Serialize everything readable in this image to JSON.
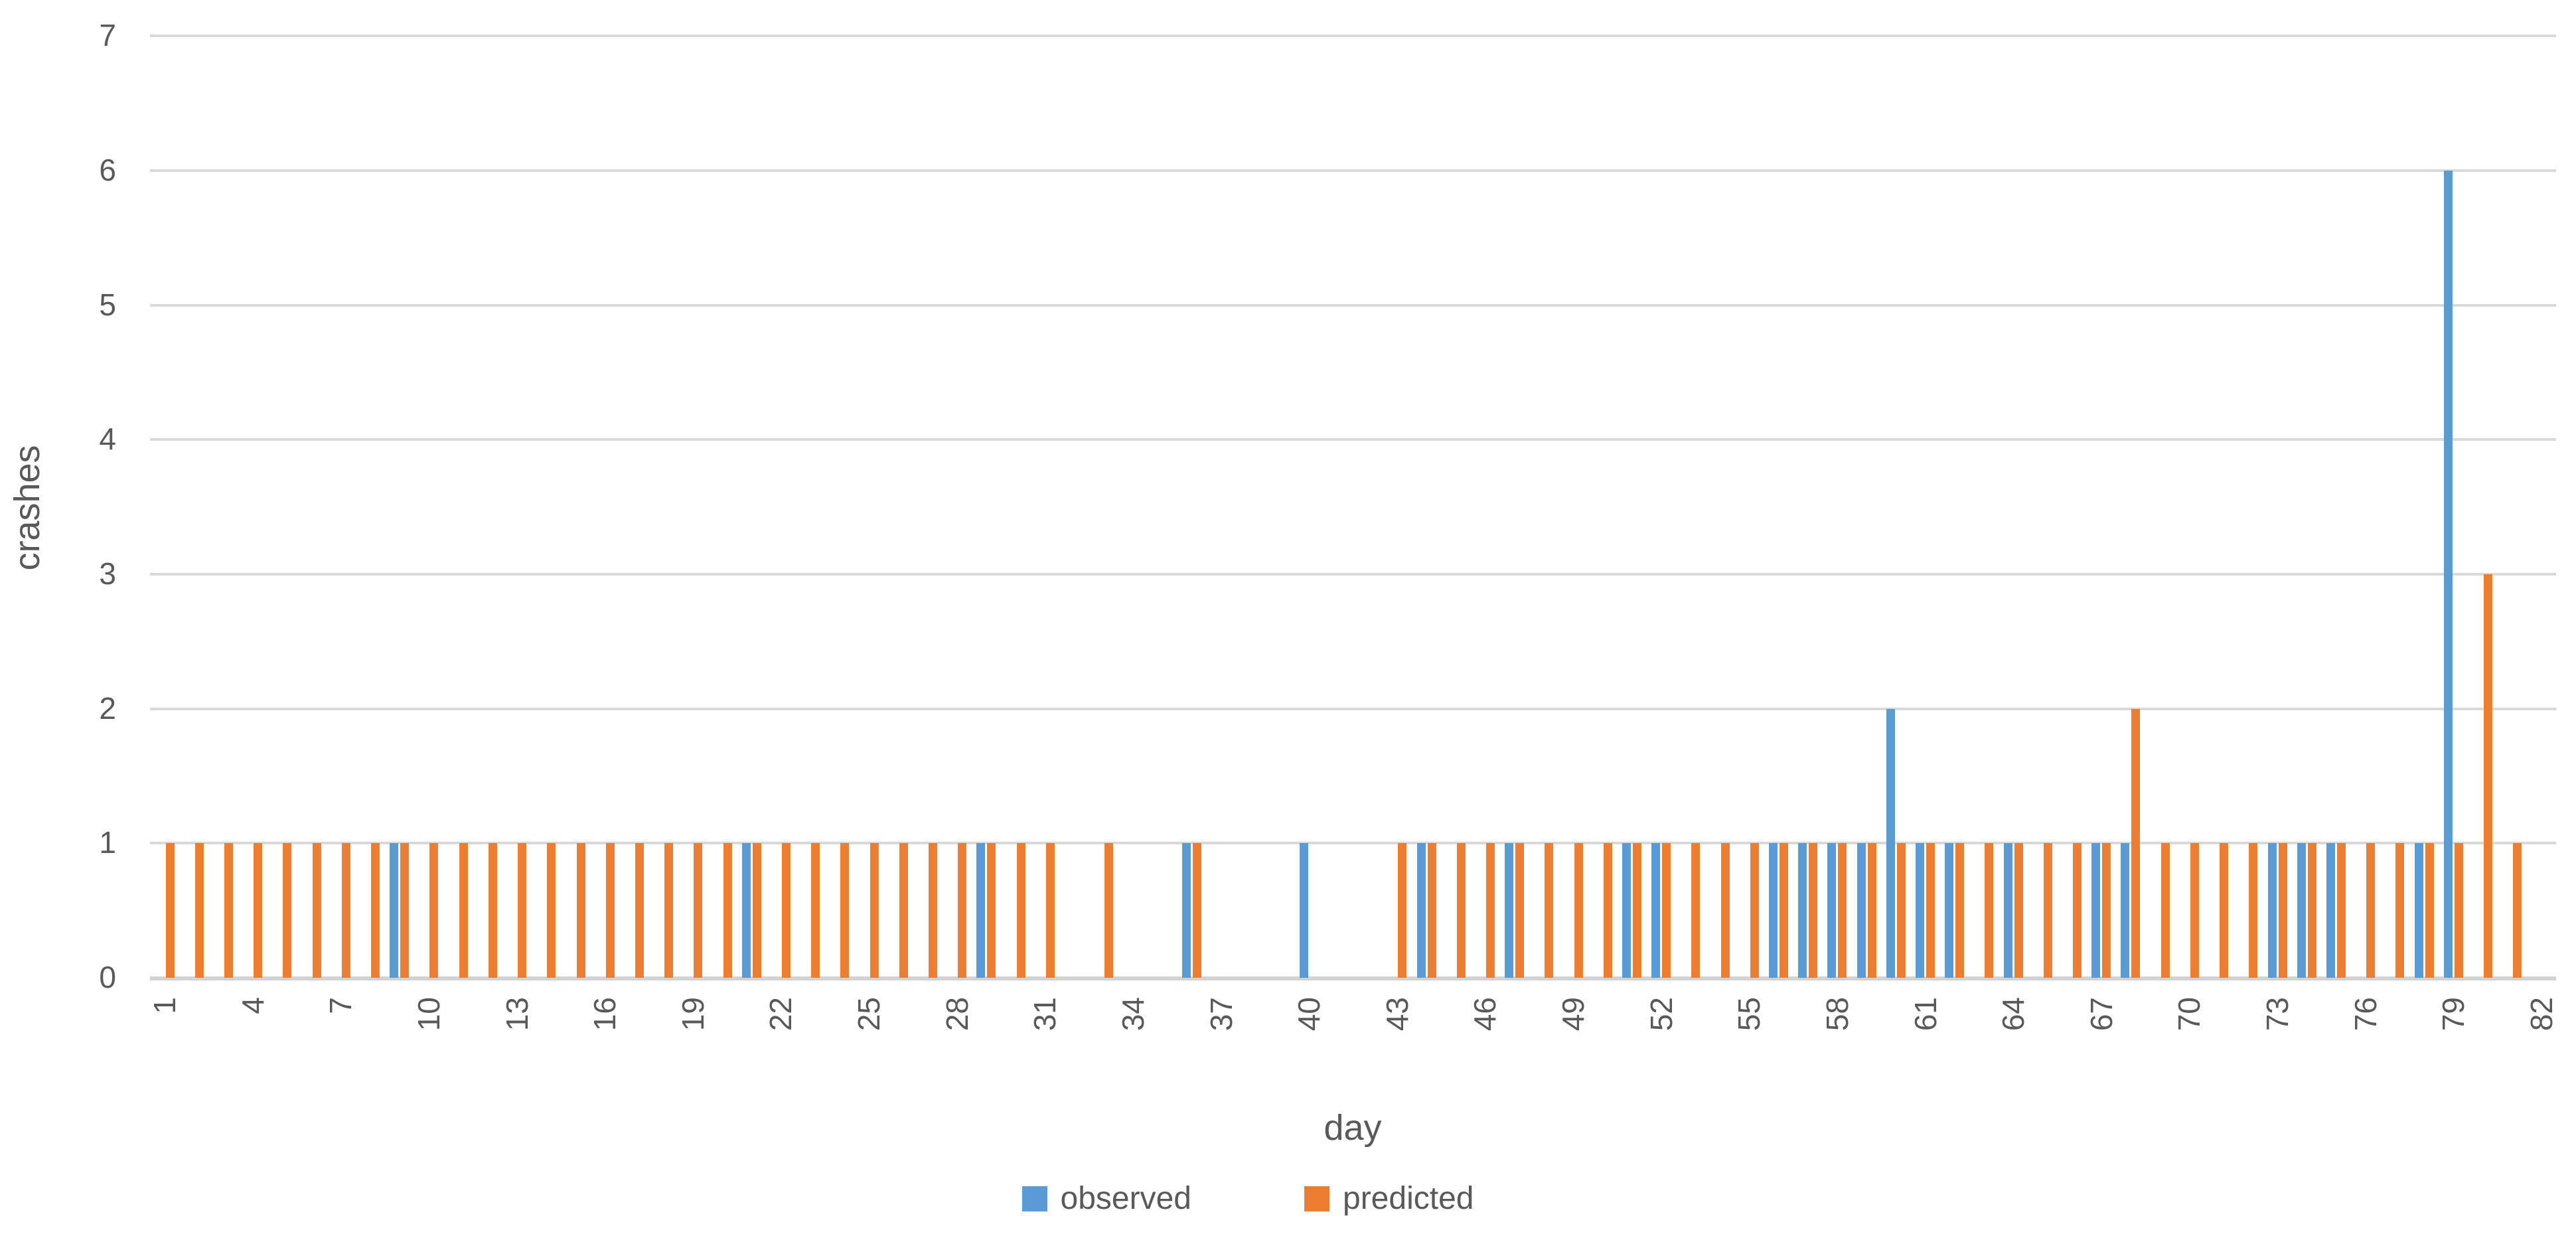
{
  "chart_data": {
    "type": "bar",
    "title": "",
    "xlabel": "day",
    "ylabel": "crashes",
    "ylim": [
      0,
      7
    ],
    "yticks": [
      0,
      1,
      2,
      3,
      4,
      5,
      6,
      7
    ],
    "grid": true,
    "legend_position": "bottom",
    "days": [
      1,
      2,
      3,
      4,
      5,
      6,
      7,
      8,
      9,
      10,
      11,
      12,
      13,
      14,
      15,
      16,
      17,
      18,
      19,
      20,
      21,
      22,
      23,
      24,
      25,
      26,
      27,
      28,
      29,
      30,
      31,
      32,
      33,
      34,
      35,
      36,
      37,
      38,
      39,
      40,
      41,
      42,
      43,
      44,
      45,
      46,
      47,
      48,
      49,
      50,
      51,
      52,
      53,
      54,
      55,
      56,
      57,
      58,
      59,
      60,
      61,
      62,
      63,
      64,
      65,
      66,
      67,
      68,
      69,
      70,
      71,
      72,
      73,
      74,
      75,
      76,
      77,
      78,
      79,
      80,
      81,
      82
    ],
    "xtick_labels": [
      1,
      4,
      7,
      10,
      13,
      16,
      19,
      22,
      25,
      28,
      31,
      34,
      37,
      40,
      43,
      46,
      49,
      52,
      55,
      58,
      61,
      64,
      67,
      70,
      73,
      76,
      79,
      82
    ],
    "series": [
      {
        "name": "observed",
        "color": "#5B9BD5",
        "values": [
          0,
          0,
          0,
          0,
          0,
          0,
          0,
          0,
          1,
          0,
          0,
          0,
          0,
          0,
          0,
          0,
          0,
          0,
          0,
          0,
          1,
          0,
          0,
          0,
          0,
          0,
          0,
          0,
          1,
          0,
          0,
          0,
          0,
          0,
          0,
          1,
          0,
          0,
          0,
          1,
          0,
          0,
          0,
          1,
          0,
          0,
          1,
          0,
          0,
          0,
          1,
          1,
          0,
          0,
          0,
          1,
          1,
          1,
          1,
          2,
          1,
          1,
          0,
          1,
          0,
          0,
          1,
          1,
          0,
          0,
          0,
          0,
          1,
          1,
          1,
          0,
          0,
          1,
          6,
          0,
          0,
          0
        ]
      },
      {
        "name": "predicted",
        "color": "#ED7D31",
        "values": [
          1,
          1,
          1,
          1,
          1,
          1,
          1,
          1,
          1,
          1,
          1,
          1,
          1,
          1,
          1,
          1,
          1,
          1,
          1,
          1,
          1,
          1,
          1,
          1,
          1,
          1,
          1,
          1,
          1,
          1,
          1,
          0,
          1,
          0,
          0,
          1,
          0,
          0,
          0,
          0,
          0,
          0,
          1,
          1,
          1,
          1,
          1,
          1,
          1,
          1,
          1,
          1,
          1,
          1,
          1,
          1,
          1,
          1,
          1,
          1,
          1,
          1,
          1,
          1,
          1,
          1,
          1,
          2,
          1,
          1,
          1,
          1,
          1,
          1,
          1,
          1,
          1,
          1,
          1,
          3,
          1,
          0
        ]
      }
    ],
    "colors": {
      "grid": "#d9d9d9",
      "axis_text": "#595959"
    }
  }
}
